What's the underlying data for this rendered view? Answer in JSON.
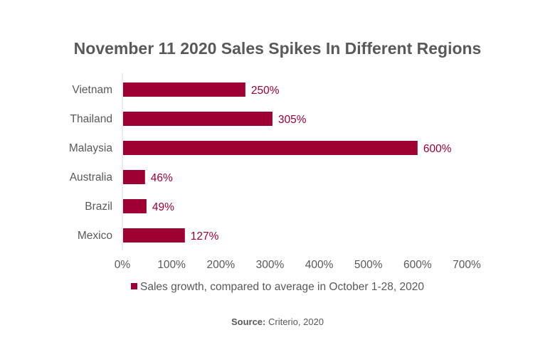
{
  "chart_data": {
    "type": "bar",
    "orientation": "horizontal",
    "title": "November 11 2020 Sales Spikes In Different Regions",
    "categories": [
      "Vietnam",
      "Thailand",
      "Malaysia",
      "Australia",
      "Brazil",
      "Mexico"
    ],
    "series": [
      {
        "name": "Sales growth, compared to average in October 1-28, 2020",
        "values": [
          250,
          305,
          600,
          46,
          49,
          127
        ]
      }
    ],
    "data_labels": [
      "250%",
      "305%",
      "600%",
      "46%",
      "49%",
      "127%"
    ],
    "x_ticks": [
      "0%",
      "100%",
      "200%",
      "300%",
      "400%",
      "500%",
      "600%",
      "700%"
    ],
    "xlim": [
      0,
      700
    ],
    "grid": false,
    "legend_position": "bottom",
    "color": "#9e0034"
  },
  "source": {
    "label": "Source:",
    "text": " Criterio, 2020"
  }
}
